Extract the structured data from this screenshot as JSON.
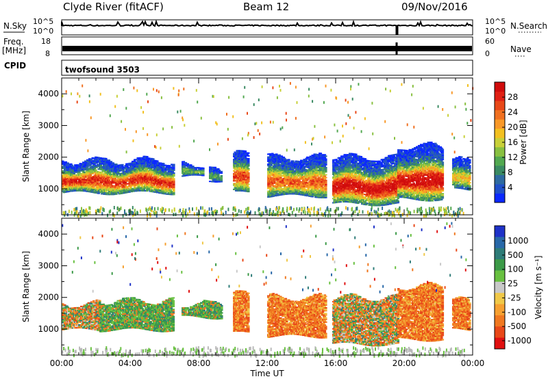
{
  "header": {
    "station": "Clyde River (fitACF)",
    "beam": "Beam 12",
    "date": "09/Nov/2016"
  },
  "top_panels": {
    "nsky_label": "N.Sky",
    "nsearch_label": "N.Search",
    "noise_ticks_left": [
      "10^5",
      "10^0"
    ],
    "noise_ticks_right": [
      "10^5",
      "10^0"
    ],
    "freq_label": "Freq.",
    "freq_unit": "[MHz]",
    "freq_ticks": [
      "18",
      "8"
    ],
    "nave_label": "Nave",
    "nave_ticks": [
      "60",
      "0"
    ],
    "cpid_label": "CPID",
    "cpid_value": "twofsound 3503"
  },
  "chart_data": [
    {
      "type": "heatmap",
      "title": "",
      "xlabel": "Time UT",
      "ylabel": "Slant Range [km]",
      "x_ticks": [
        "00:00",
        "04:00",
        "08:00",
        "12:00",
        "16:00",
        "20:00",
        "00:00"
      ],
      "xlim_hours": [
        0,
        24
      ],
      "y_ticks": [
        1000,
        2000,
        3000,
        4000
      ],
      "ylim_km": [
        180,
        4500
      ],
      "colorbar": {
        "label": "Power [dB]",
        "ticks": [
          4,
          8,
          12,
          16,
          20,
          24,
          28
        ],
        "range": [
          0,
          32
        ],
        "colors": [
          "#0a28ff",
          "#2050c8",
          "#2e6aa0",
          "#3a8a62",
          "#52a850",
          "#88c040",
          "#c8d038",
          "#f2c020",
          "#f89828",
          "#f07020",
          "#e84818",
          "#e02014",
          "#d00c0c"
        ]
      },
      "echo_regions": [
        {
          "t0": 0.0,
          "t1": 6.5,
          "r0": 800,
          "r1": 2000,
          "peak": 27
        },
        {
          "t0": 7.0,
          "t1": 8.2,
          "r0": 1300,
          "r1": 1900,
          "peak": 12
        },
        {
          "t0": 8.6,
          "t1": 9.3,
          "r0": 1200,
          "r1": 1700,
          "peak": 10
        },
        {
          "t0": 10.0,
          "t1": 10.9,
          "r0": 800,
          "r1": 2200,
          "peak": 26
        },
        {
          "t0": 12.0,
          "t1": 15.4,
          "r0": 700,
          "r1": 2100,
          "peak": 24
        },
        {
          "t0": 15.8,
          "t1": 19.6,
          "r0": 450,
          "r1": 2100,
          "peak": 30
        },
        {
          "t0": 19.6,
          "t1": 22.2,
          "r0": 600,
          "r1": 2450,
          "peak": 30
        },
        {
          "t0": 22.8,
          "t1": 23.8,
          "r0": 900,
          "r1": 2000,
          "peak": 18
        }
      ]
    },
    {
      "type": "heatmap",
      "title": "",
      "xlabel": "Time UT",
      "ylabel": "Slant Range [km]",
      "x_ticks": [
        "00:00",
        "04:00",
        "08:00",
        "12:00",
        "16:00",
        "20:00",
        "00:00"
      ],
      "xlim_hours": [
        0,
        24
      ],
      "y_ticks": [
        1000,
        2000,
        3000,
        4000
      ],
      "ylim_km": [
        180,
        4500
      ],
      "colorbar": {
        "label": "Velocity [m s⁻¹]",
        "ticks": [
          "1000",
          "500",
          "100",
          "25",
          "-25",
          "-100",
          "-500",
          "-1000"
        ],
        "colors": [
          "#1e32c8",
          "#2868a8",
          "#2e7c78",
          "#3c9a48",
          "#68c040",
          "#c8c8c8",
          "#f0c848",
          "#f6a030",
          "#f07820",
          "#e84818",
          "#e01010"
        ]
      },
      "echo_regions": [
        {
          "t0": 0.0,
          "t1": 2.2,
          "r0": 900,
          "r1": 1900,
          "class": "mixed_toward"
        },
        {
          "t0": 2.2,
          "t1": 6.5,
          "r0": 900,
          "r1": 2000,
          "class": "toward"
        },
        {
          "t0": 7.0,
          "t1": 9.3,
          "r0": 1300,
          "r1": 1900,
          "class": "toward"
        },
        {
          "t0": 10.0,
          "t1": 10.9,
          "r0": 800,
          "r1": 2200,
          "class": "away"
        },
        {
          "t0": 12.0,
          "t1": 15.4,
          "r0": 700,
          "r1": 2100,
          "class": "away"
        },
        {
          "t0": 15.8,
          "t1": 19.6,
          "r0": 450,
          "r1": 2100,
          "class": "mixed_toward"
        },
        {
          "t0": 19.6,
          "t1": 22.2,
          "r0": 600,
          "r1": 2450,
          "class": "away"
        },
        {
          "t0": 22.8,
          "t1": 23.8,
          "r0": 900,
          "r1": 2000,
          "class": "away"
        }
      ]
    }
  ]
}
